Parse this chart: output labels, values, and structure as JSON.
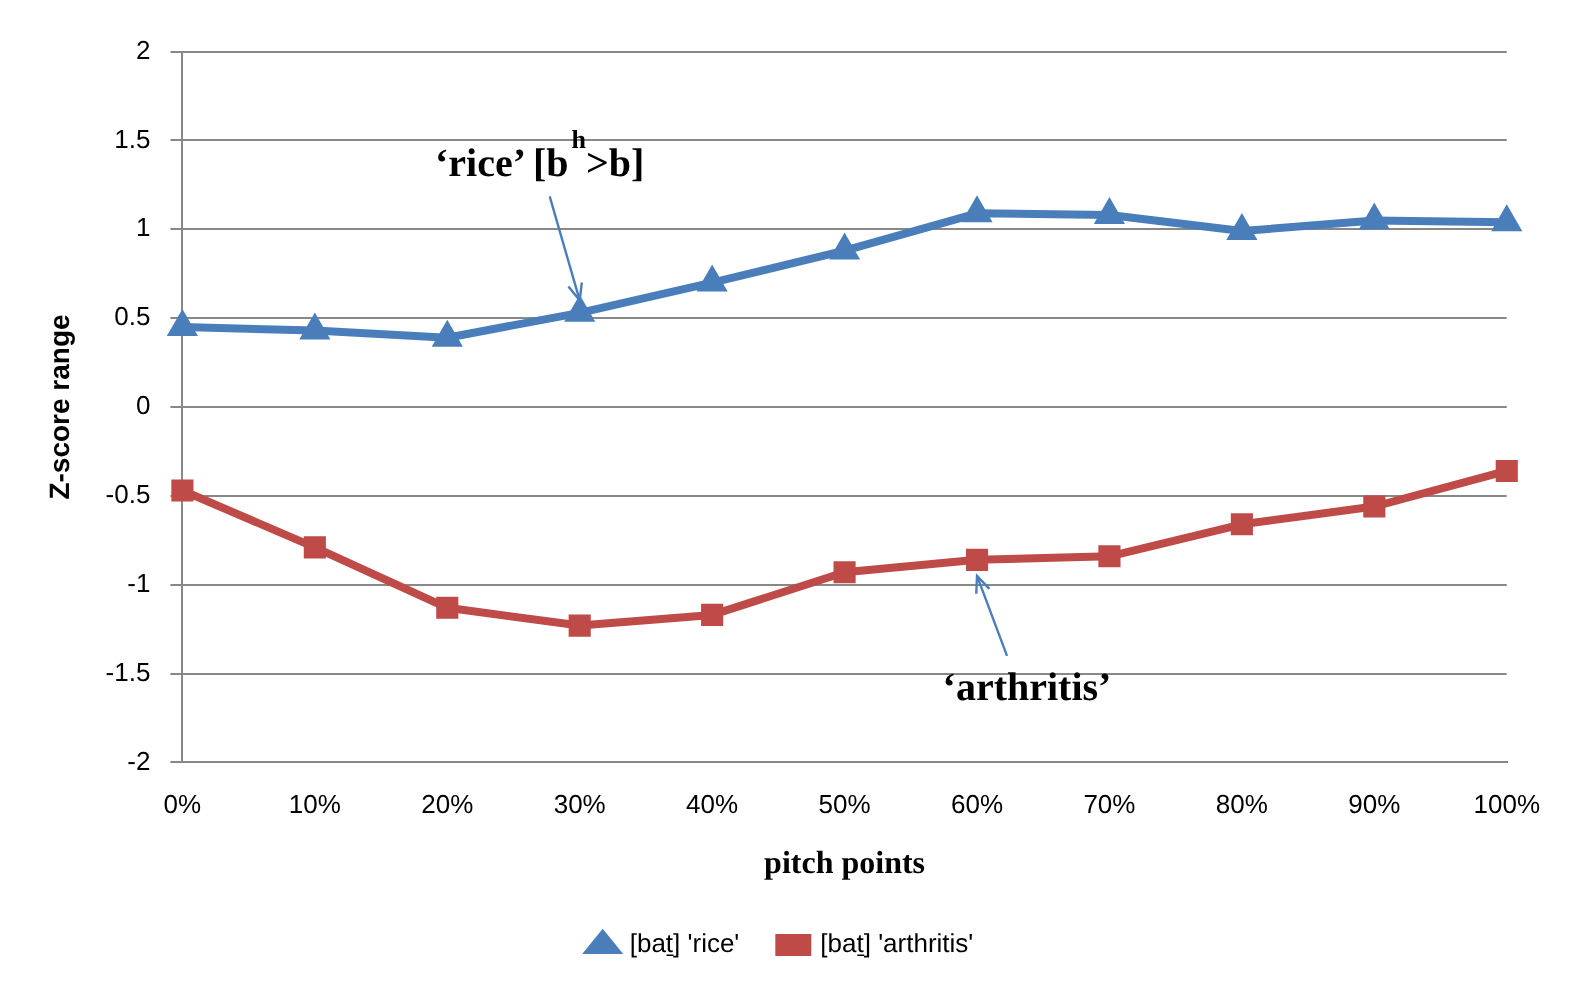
{
  "chart_data": {
    "type": "line",
    "xlabel": "pitch points",
    "ylabel": "Z-score range",
    "categories": [
      "0%",
      "10%",
      "20%",
      "30%",
      "40%",
      "50%",
      "60%",
      "70%",
      "80%",
      "90%",
      "100%"
    ],
    "series": [
      {
        "name": "[baṯ] 'rice'",
        "color": "#4a7ebb",
        "marker": "triangle",
        "values": [
          0.45,
          0.43,
          0.39,
          0.53,
          0.7,
          0.88,
          1.09,
          1.08,
          0.99,
          1.05,
          1.04
        ]
      },
      {
        "name": "[baṯ] 'arthritis'",
        "color": "#be4b48",
        "marker": "square",
        "values": [
          -0.47,
          -0.79,
          -1.13,
          -1.23,
          -1.17,
          -0.93,
          -0.86,
          -0.84,
          -0.66,
          -0.56,
          -0.36
        ]
      }
    ],
    "ylim": [
      -2,
      2
    ],
    "yticks": [
      -2,
      -1.5,
      -1,
      -0.5,
      0,
      0.5,
      1,
      1.5,
      2
    ],
    "grid": "y",
    "legend": "bottom",
    "annotations": [
      {
        "text": "‘rice’ [b$^{h}$>b]",
        "x": "30%",
        "y": 0.6
      },
      {
        "text": "‘arthritis’",
        "x": "60%",
        "y": -0.95
      }
    ]
  }
}
